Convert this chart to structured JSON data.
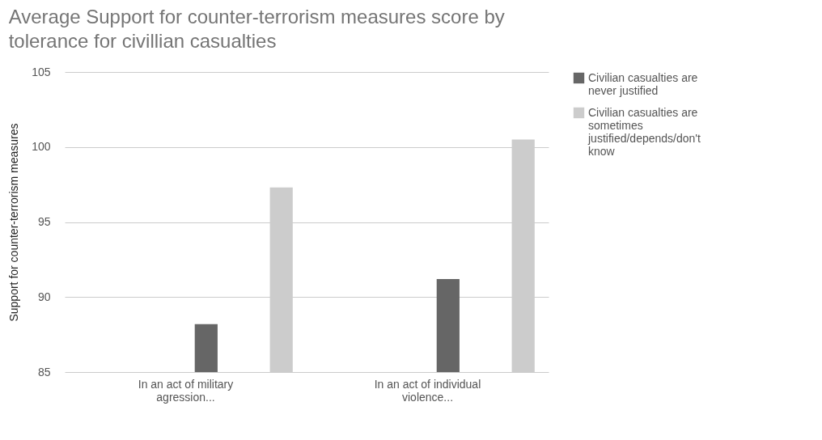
{
  "chart_data": {
    "type": "bar",
    "title": "Average Support for counter-terrorism measures score by tolerance for civillian casualties",
    "ylabel": "Support for counter-terrorism measures",
    "categories": [
      "In an act of military agression...",
      "In an act of individual violence..."
    ],
    "series": [
      {
        "name": "Civilian casualties are never justified",
        "color": "#666666",
        "values": [
          88.2,
          91.2
        ]
      },
      {
        "name": "Civilian casualties are sometimes justified/depends/don't know",
        "color": "#cccccc",
        "values": [
          97.3,
          100.5
        ]
      }
    ],
    "ylim": [
      85,
      105
    ],
    "yticks": [
      85,
      90,
      95,
      100,
      105
    ],
    "grid": "y",
    "legend": "right"
  }
}
